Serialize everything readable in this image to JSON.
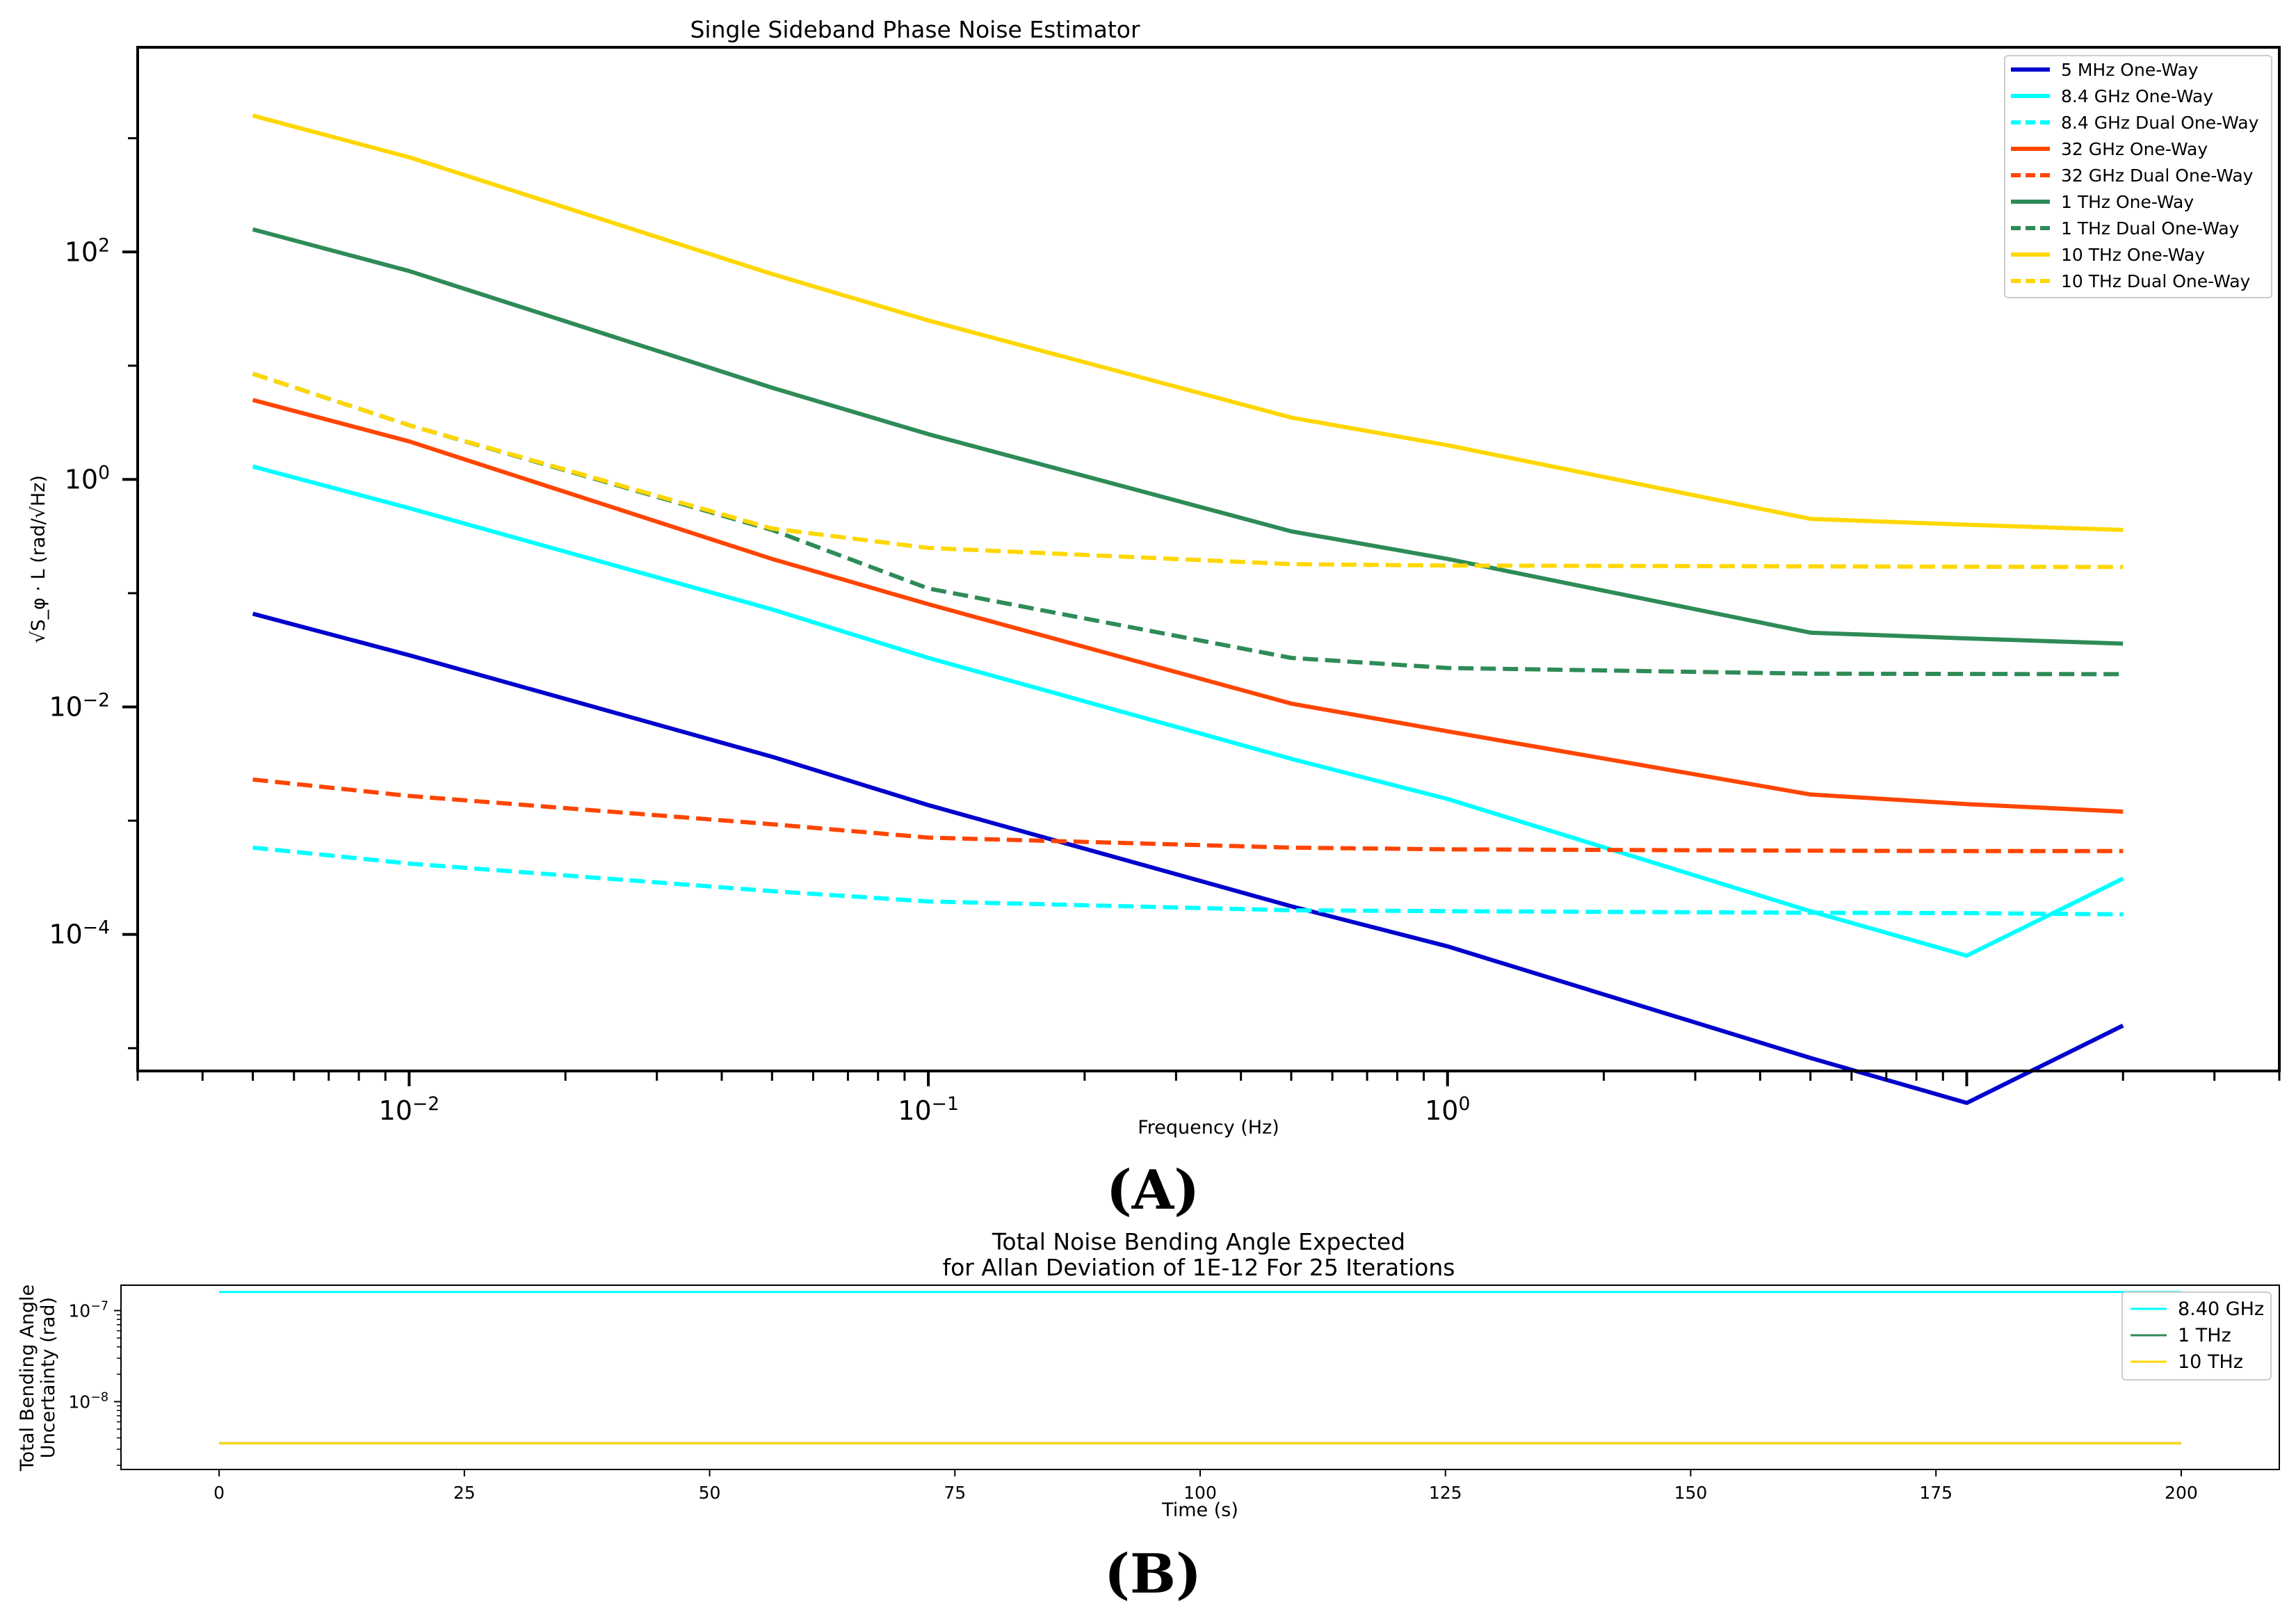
{
  "chart_data": [
    {
      "type": "line",
      "title": "Single Sideband Phase Noise Estimator",
      "xlabel": "Frequency (Hz)",
      "ylabel": "√S_φ · L (rad/√Hz)",
      "xscale": "log",
      "yscale": "log",
      "xlim": [
        0.003,
        40
      ],
      "ylim": [
        6.3e-06,
        6300
      ],
      "xtick_labels": [
        {
          "value": 0.01,
          "base": "10",
          "exp": "−2"
        },
        {
          "value": 0.1,
          "base": "10",
          "exp": "−1"
        },
        {
          "value": 1,
          "base": "10",
          "exp": "0"
        }
      ],
      "ytick_labels": [
        {
          "value": 100,
          "base": "10",
          "exp": "2"
        },
        {
          "value": 1,
          "base": "10",
          "exp": "0"
        },
        {
          "value": 0.01,
          "base": "10",
          "exp": "−2"
        },
        {
          "value": 0.0001,
          "base": "10",
          "exp": "−4"
        }
      ],
      "legend_position": "top-right",
      "series": [
        {
          "name": "5 MHz One-Way",
          "color": "#0000CD",
          "dash": "solid",
          "x": [
            0.005,
            0.01,
            0.05,
            0.1,
            0.5,
            1,
            5,
            10,
            20
          ],
          "y": [
            0.066,
            0.0285,
            0.00365,
            0.00137,
            0.000177,
            7.85e-05,
            8.2e-06,
            3.3e-06,
            1.58e-05
          ]
        },
        {
          "name": "8.4 GHz One-Way",
          "color": "#00FFFF",
          "dash": "solid",
          "x": [
            0.005,
            0.01,
            0.05,
            0.1,
            0.5,
            1,
            5,
            10,
            20
          ],
          "y": [
            1.3,
            0.56,
            0.072,
            0.027,
            0.0035,
            0.00155,
            0.00016,
            6.5e-05,
            0.00031
          ]
        },
        {
          "name": "8.4 GHz Dual One-Way",
          "color": "#00FFFF",
          "dash": "dashed",
          "x": [
            0.005,
            0.01,
            0.05,
            0.1,
            0.5,
            1,
            5,
            10,
            20
          ],
          "y": [
            0.00058,
            0.00042,
            0.00024,
            0.000195,
            0.000163,
            0.00016,
            0.000155,
            0.000154,
            0.00015
          ]
        },
        {
          "name": "32 GHz One-Way",
          "color": "#FF4500",
          "dash": "solid",
          "x": [
            0.005,
            0.01,
            0.05,
            0.1,
            0.5,
            1,
            5,
            10,
            20
          ],
          "y": [
            5.0,
            2.16,
            0.2,
            0.08,
            0.0107,
            0.0061,
            0.0017,
            0.0014,
            0.0012
          ]
        },
        {
          "name": "32 GHz Dual One-Way",
          "color": "#FF4500",
          "dash": "dashed",
          "x": [
            0.005,
            0.01,
            0.05,
            0.1,
            0.5,
            1,
            5,
            10,
            20
          ],
          "y": [
            0.0023,
            0.00165,
            0.00093,
            0.00071,
            0.00058,
            0.00056,
            0.000545,
            0.00054,
            0.00054
          ]
        },
        {
          "name": "1 THz One-Way",
          "color": "#2E8B57",
          "dash": "solid",
          "x": [
            0.005,
            0.01,
            0.05,
            0.1,
            0.5,
            1,
            5,
            10,
            20
          ],
          "y": [
            158,
            68,
            6.4,
            2.5,
            0.35,
            0.2,
            0.045,
            0.04,
            0.036
          ]
        },
        {
          "name": "1 THz Dual One-Way",
          "color": "#2E8B57",
          "dash": "dashed",
          "x": [
            0.005,
            0.01,
            0.05,
            0.1,
            0.5,
            1,
            5,
            10,
            20
          ],
          "y": [
            8.5,
            3.0,
            0.36,
            0.11,
            0.027,
            0.022,
            0.0196,
            0.0195,
            0.0194
          ]
        },
        {
          "name": "10 THz One-Way",
          "color": "#FFD700",
          "dash": "solid",
          "x": [
            0.005,
            0.01,
            0.05,
            0.1,
            0.5,
            1,
            5,
            10,
            20
          ],
          "y": [
            1580,
            680,
            64,
            25,
            3.5,
            2.0,
            0.45,
            0.4,
            0.36
          ]
        },
        {
          "name": "10 THz Dual One-Way",
          "color": "#FFD700",
          "dash": "dashed",
          "x": [
            0.005,
            0.01,
            0.05,
            0.1,
            0.5,
            1,
            5,
            10,
            20
          ],
          "y": [
            8.5,
            3.0,
            0.37,
            0.25,
            0.18,
            0.175,
            0.172,
            0.171,
            0.17
          ]
        }
      ]
    },
    {
      "type": "line",
      "title": "Total Noise Bending Angle Expected",
      "subtitle": "for Allan Deviation of 1E-12 For 25 Iterations",
      "xlabel": "Time (s)",
      "ylabel": "Total Bending Angle",
      "ylabel2": "Uncertainty (rad)",
      "xscale": "linear",
      "yscale": "log",
      "xlim": [
        -10,
        210
      ],
      "ylim": [
        1.8e-09,
        1.9e-07
      ],
      "xticks": [
        0,
        25,
        50,
        75,
        100,
        125,
        150,
        175,
        200
      ],
      "ytick_labels": [
        {
          "value": 1e-07,
          "base": "10",
          "exp": "−7"
        },
        {
          "value": 1e-08,
          "base": "10",
          "exp": "−8"
        }
      ],
      "legend_position": "top-right",
      "series": [
        {
          "name": "8.40 GHz",
          "color": "#00FFFF",
          "x": [
            0,
            200
          ],
          "y": [
            1.6e-07,
            1.6e-07
          ]
        },
        {
          "name": "1 THz",
          "color": "#2E8B57",
          "x": [
            0,
            200
          ],
          "y": [
            3.5e-09,
            3.5e-09
          ]
        },
        {
          "name": "10 THz",
          "color": "#FFD700",
          "x": [
            0,
            200
          ],
          "y": [
            3.5e-09,
            3.5e-09
          ]
        }
      ]
    }
  ],
  "panel_labels": {
    "a": "(A)",
    "b": "(B)"
  }
}
